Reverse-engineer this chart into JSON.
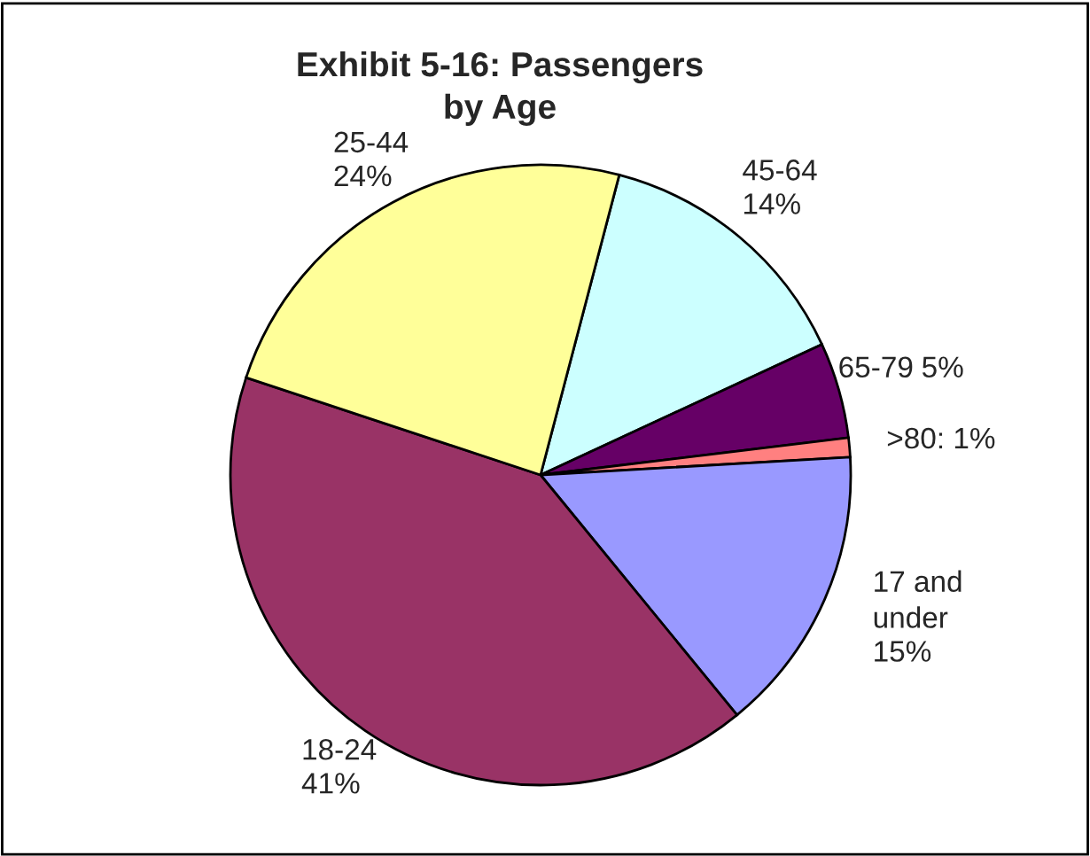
{
  "chart_data": {
    "type": "pie",
    "title": "Exhibit 5-16: Passengers by Age",
    "categories": [
      "45-64",
      "65-79",
      ">80",
      "17 and under",
      "18-24",
      "25-44"
    ],
    "values": [
      14,
      5,
      1,
      15,
      41,
      24
    ],
    "colors": [
      "#ccffff",
      "#660066",
      "#ff8080",
      "#9999ff",
      "#993366",
      "#ffff99"
    ],
    "value_labels": [
      "14%",
      "5%",
      "1%",
      "15%",
      "41%",
      "24%"
    ],
    "legend": false
  }
}
